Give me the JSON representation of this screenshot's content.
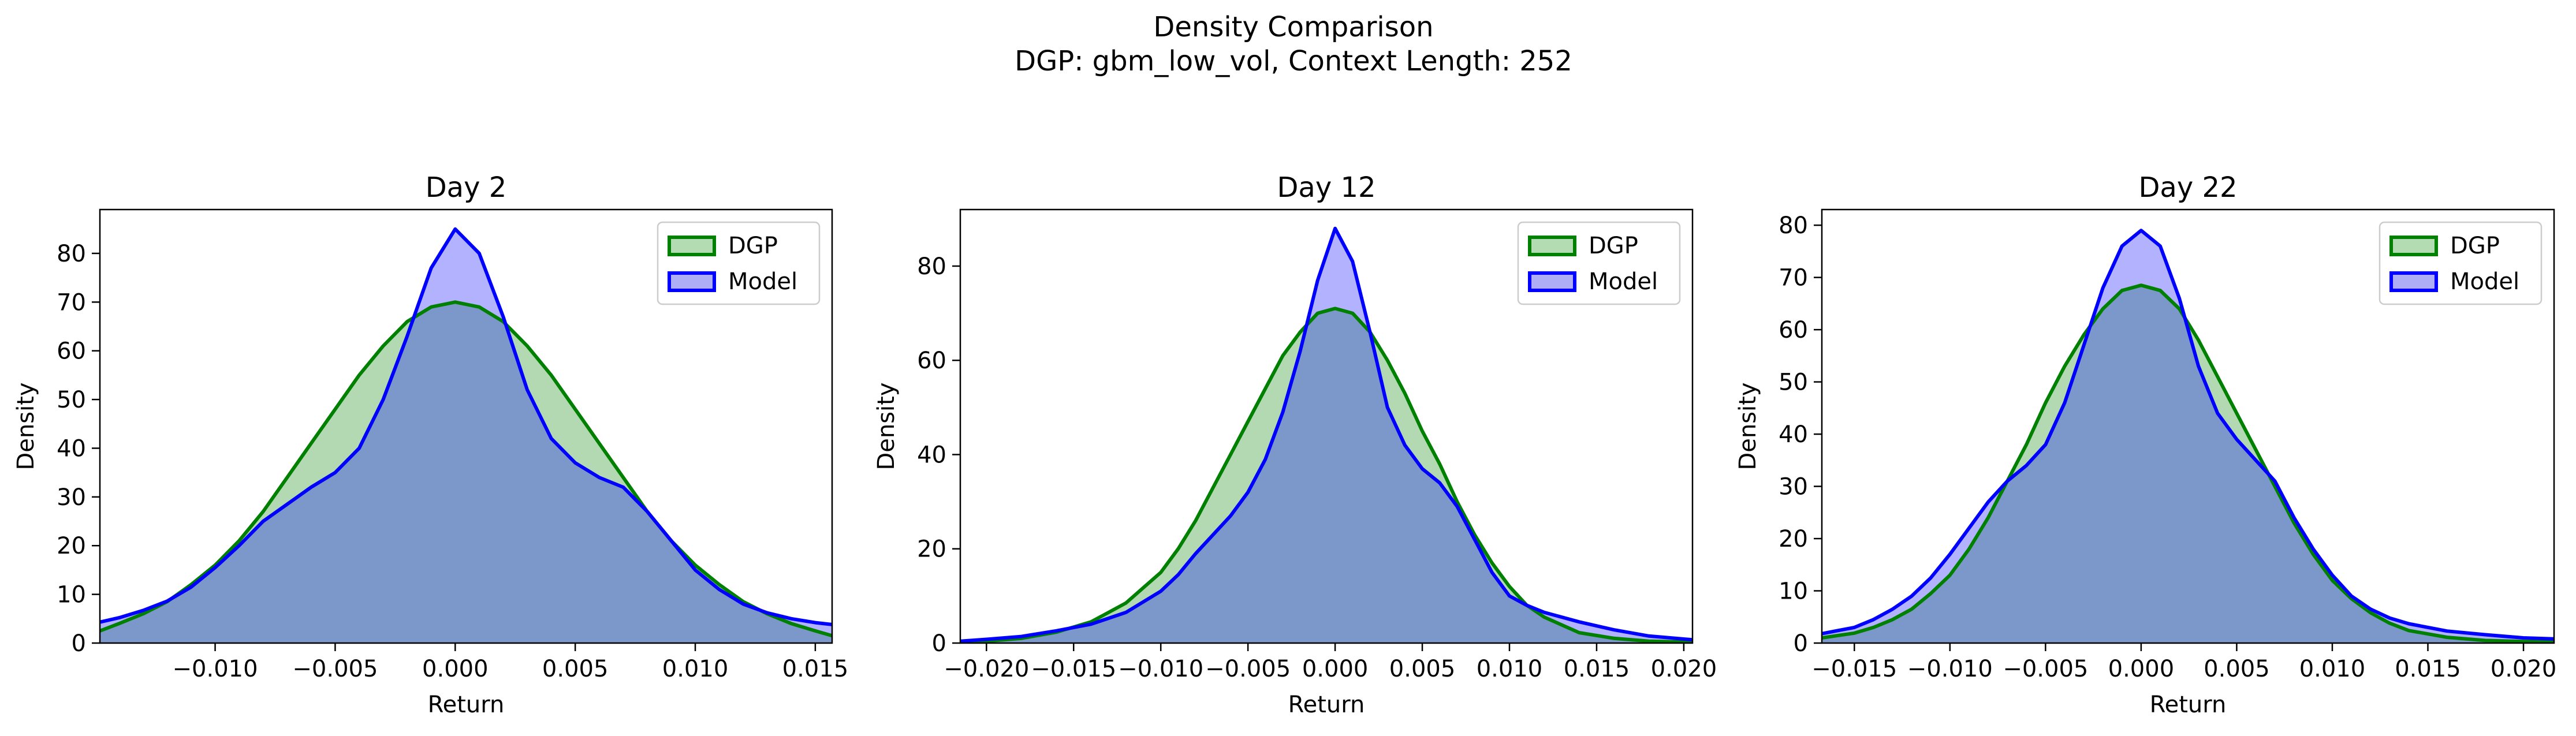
{
  "figure": {
    "title_line1": "Density Comparison",
    "title_line2": "DGP: gbm_low_vol, Context Length: 252"
  },
  "colors": {
    "dgp_line": "#008000",
    "dgp_fill": "#b3dcb3",
    "model_line": "#0000ff",
    "model_fill": "#aeaef6",
    "overlap_fill": "#7f98c9"
  },
  "chart_data": [
    {
      "type": "area",
      "title": "Day 2",
      "xlabel": "Return",
      "ylabel": "Density",
      "xlim": [
        -0.0148,
        0.0157
      ],
      "ylim": [
        0,
        89
      ],
      "xticks": [
        -0.01,
        -0.005,
        0.0,
        0.005,
        0.01,
        0.015
      ],
      "xtick_labels": [
        "−0.010",
        "−0.005",
        "0.000",
        "0.005",
        "0.010",
        "0.015"
      ],
      "yticks": [
        0,
        10,
        20,
        30,
        40,
        50,
        60,
        70,
        80
      ],
      "ytick_labels": [
        "0",
        "10",
        "20",
        "30",
        "40",
        "50",
        "60",
        "70",
        "80"
      ],
      "legend": {
        "position": "top-right",
        "entries": [
          "DGP",
          "Model"
        ]
      },
      "grid": false,
      "x": [
        -0.0148,
        -0.014,
        -0.013,
        -0.012,
        -0.011,
        -0.01,
        -0.009,
        -0.008,
        -0.007,
        -0.006,
        -0.005,
        -0.004,
        -0.003,
        -0.002,
        -0.001,
        0.0,
        0.001,
        0.002,
        0.003,
        0.004,
        0.005,
        0.006,
        0.007,
        0.008,
        0.009,
        0.01,
        0.011,
        0.012,
        0.013,
        0.014,
        0.015,
        0.0157
      ],
      "series": [
        {
          "name": "DGP",
          "values": [
            2.5,
            4,
            6,
            8.5,
            12,
            16,
            21,
            27,
            34,
            41,
            48,
            55,
            61,
            66,
            69,
            70,
            69,
            66,
            61,
            55,
            48,
            41,
            34,
            27,
            21,
            16,
            12,
            8.5,
            6,
            4,
            2.5,
            1.5
          ]
        },
        {
          "name": "Model",
          "values": [
            4.3,
            5.2,
            6.7,
            8.6,
            11.5,
            15.5,
            20,
            25,
            28.5,
            32,
            35,
            40,
            50,
            63,
            77,
            85,
            80,
            67,
            52,
            42,
            37,
            34,
            32,
            27,
            21,
            15,
            11,
            8,
            6.2,
            5,
            4.2,
            3.8
          ]
        }
      ]
    },
    {
      "type": "area",
      "title": "Day 12",
      "xlabel": "Return",
      "ylabel": "Density",
      "xlim": [
        -0.0215,
        0.0205
      ],
      "ylim": [
        0,
        92
      ],
      "xticks": [
        -0.02,
        -0.015,
        -0.01,
        -0.005,
        0.0,
        0.005,
        0.01,
        0.015,
        0.02
      ],
      "xtick_labels": [
        "−0.020",
        "−0.015",
        "−0.010",
        "−0.005",
        "0.000",
        "0.005",
        "0.010",
        "0.015",
        "0.020"
      ],
      "yticks": [
        0,
        20,
        40,
        60,
        80
      ],
      "ytick_labels": [
        "0",
        "20",
        "40",
        "60",
        "80"
      ],
      "legend": {
        "position": "top-right",
        "entries": [
          "DGP",
          "Model"
        ]
      },
      "grid": false,
      "x": [
        -0.0215,
        -0.02,
        -0.018,
        -0.016,
        -0.014,
        -0.012,
        -0.01,
        -0.009,
        -0.008,
        -0.007,
        -0.006,
        -0.005,
        -0.004,
        -0.003,
        -0.002,
        -0.001,
        0.0,
        0.001,
        0.002,
        0.003,
        0.004,
        0.005,
        0.006,
        0.007,
        0.008,
        0.009,
        0.01,
        0.011,
        0.012,
        0.014,
        0.016,
        0.018,
        0.0205
      ],
      "series": [
        {
          "name": "DGP",
          "values": [
            0.2,
            0.4,
            1,
            2.3,
            4.5,
            8.5,
            15,
            20,
            26,
            33,
            40,
            47,
            54,
            61,
            66,
            70,
            71,
            70,
            66,
            60,
            53,
            45,
            38,
            30,
            23,
            17,
            12,
            8,
            5.5,
            2.2,
            1,
            0.4,
            0.2
          ]
        },
        {
          "name": "Model",
          "values": [
            0.4,
            0.8,
            1.4,
            2.6,
            4,
            6.5,
            11,
            14.5,
            19,
            23,
            27,
            32,
            39,
            49,
            62,
            77,
            88,
            81,
            66,
            50,
            42,
            37,
            34,
            29,
            22,
            15,
            10,
            8,
            6.5,
            4.5,
            2.8,
            1.5,
            0.7
          ]
        }
      ]
    },
    {
      "type": "area",
      "title": "Day 22",
      "xlabel": "Return",
      "ylabel": "Density",
      "xlim": [
        -0.0167,
        0.0216
      ],
      "ylim": [
        0,
        83
      ],
      "xticks": [
        -0.015,
        -0.01,
        -0.005,
        0.0,
        0.005,
        0.01,
        0.015,
        0.02
      ],
      "xtick_labels": [
        "−0.015",
        "−0.010",
        "−0.005",
        "0.000",
        "0.005",
        "0.010",
        "0.015",
        "0.020"
      ],
      "yticks": [
        0,
        10,
        20,
        30,
        40,
        50,
        60,
        70,
        80
      ],
      "ytick_labels": [
        "0",
        "10",
        "20",
        "30",
        "40",
        "50",
        "60",
        "70",
        "80"
      ],
      "legend": {
        "position": "top-right",
        "entries": [
          "DGP",
          "Model"
        ]
      },
      "grid": false,
      "x": [
        -0.0167,
        -0.015,
        -0.014,
        -0.013,
        -0.012,
        -0.011,
        -0.01,
        -0.009,
        -0.008,
        -0.007,
        -0.006,
        -0.005,
        -0.004,
        -0.003,
        -0.002,
        -0.001,
        0.0,
        0.001,
        0.002,
        0.003,
        0.004,
        0.005,
        0.006,
        0.007,
        0.008,
        0.009,
        0.01,
        0.011,
        0.012,
        0.013,
        0.014,
        0.016,
        0.018,
        0.02,
        0.0216
      ],
      "series": [
        {
          "name": "DGP",
          "values": [
            1,
            1.9,
            3,
            4.5,
            6.5,
            9.5,
            13,
            18,
            24,
            31,
            38,
            46,
            53,
            59,
            64,
            67.5,
            68.5,
            67.5,
            64,
            58,
            51,
            44,
            37,
            30,
            23,
            17,
            12,
            8.5,
            5.8,
            3.8,
            2.4,
            1.1,
            0.5,
            0.3,
            0.2
          ]
        },
        {
          "name": "Model",
          "values": [
            1.8,
            3,
            4.5,
            6.5,
            9,
            12.5,
            17,
            22,
            27,
            31,
            34,
            38,
            46,
            57,
            68,
            76,
            79,
            76,
            66,
            53,
            44,
            39,
            35,
            31,
            24,
            18,
            13,
            9,
            6.5,
            4.8,
            3.7,
            2.3,
            1.6,
            1,
            0.8
          ]
        }
      ]
    }
  ]
}
